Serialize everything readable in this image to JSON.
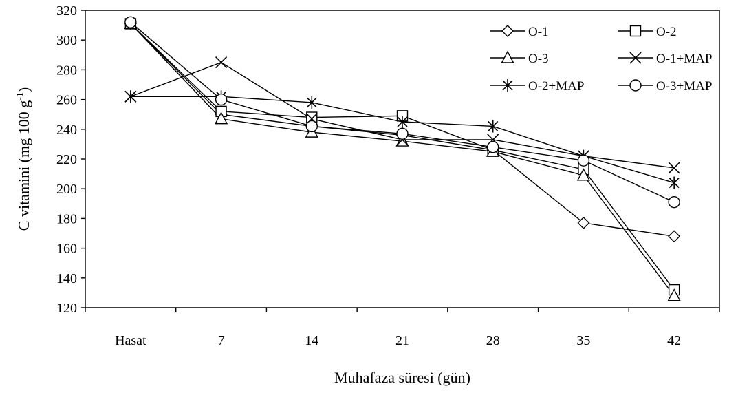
{
  "chart_data": {
    "type": "line",
    "categories": [
      "Hasat",
      "7",
      "14",
      "21",
      "28",
      "35",
      "42"
    ],
    "ylim": [
      120,
      320
    ],
    "yticks": [
      120,
      140,
      160,
      180,
      200,
      220,
      240,
      260,
      280,
      300,
      320
    ],
    "xlabel": "Muhafaza süresi (gün)",
    "ylabel": {
      "prefix": "C vitamini (mg 100 g",
      "superscript": "-1",
      "suffix": ")"
    },
    "grid": false,
    "legend": "top-right",
    "series": [
      {
        "name": "O-1",
        "marker": "diamond",
        "values": [
          311,
          250,
          242,
          236,
          226,
          177,
          168
        ]
      },
      {
        "name": "O-2",
        "marker": "square",
        "values": [
          311,
          252,
          248,
          249,
          226,
          213,
          132
        ]
      },
      {
        "name": "O-3",
        "marker": "triangle",
        "values": [
          311,
          247,
          238,
          232,
          225,
          209,
          128
        ]
      },
      {
        "name": "O-1+MAP",
        "marker": "x",
        "values": [
          262,
          285,
          247,
          233,
          233,
          222,
          214
        ]
      },
      {
        "name": "O-2+MAP",
        "marker": "asterisk",
        "values": [
          262,
          262,
          258,
          245,
          242,
          222,
          204
        ]
      },
      {
        "name": "O-3+MAP",
        "marker": "circle",
        "values": [
          312,
          260,
          242,
          237,
          228,
          219,
          191
        ]
      }
    ]
  }
}
